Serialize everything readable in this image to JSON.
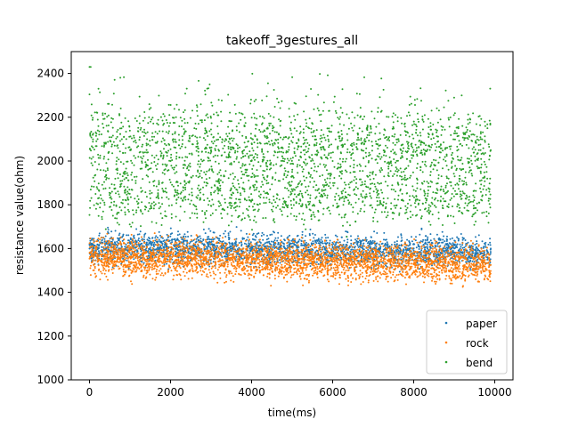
{
  "chart_data": {
    "type": "scatter",
    "title": "takeoff_3gestures_all",
    "xlabel": "time(ms)",
    "ylabel": "resistance value(ohm)",
    "xlim": [
      -450,
      10450
    ],
    "ylim": [
      1000,
      2500
    ],
    "xticks": [
      0,
      2000,
      4000,
      6000,
      8000,
      10000
    ],
    "yticks": [
      1000,
      1200,
      1400,
      1600,
      1800,
      2000,
      2200,
      2400
    ],
    "xtick_labels": [
      "0",
      "2000",
      "4000",
      "6000",
      "8000",
      "10000"
    ],
    "ytick_labels": [
      "1000",
      "1200",
      "1400",
      "1600",
      "1800",
      "2000",
      "2200",
      "2400"
    ],
    "legend_position": "lower-right",
    "grid": false,
    "series": [
      {
        "name": "paper",
        "color": "#1f77b4",
        "points": [
          [
            0,
            1600
          ],
          [
            200,
            1640
          ],
          [
            1000,
            1630
          ],
          [
            2000,
            1625
          ],
          [
            3000,
            1620
          ],
          [
            4000,
            1615
          ],
          [
            5000,
            1610
          ],
          [
            6000,
            1605
          ],
          [
            7000,
            1600
          ],
          [
            8000,
            1600
          ],
          [
            9000,
            1600
          ],
          [
            9900,
            1600
          ]
        ],
        "distribution": {
          "x_range": [
            0,
            9900
          ],
          "y_center_start": 1605,
          "y_center_end": 1585,
          "y_spread": 110,
          "count": 2600
        }
      },
      {
        "name": "rock",
        "color": "#ff7f0e",
        "points": [
          [
            0,
            1580
          ],
          [
            200,
            1540
          ],
          [
            1000,
            1560
          ],
          [
            2000,
            1550
          ],
          [
            3000,
            1550
          ],
          [
            4000,
            1545
          ],
          [
            5000,
            1540
          ],
          [
            6000,
            1540
          ],
          [
            7000,
            1535
          ],
          [
            8000,
            1530
          ],
          [
            9000,
            1530
          ],
          [
            9900,
            1525
          ]
        ],
        "distribution": {
          "x_range": [
            0,
            9900
          ],
          "y_center_start": 1560,
          "y_center_end": 1530,
          "y_spread": 130,
          "count": 3200
        }
      },
      {
        "name": "bend",
        "color": "#2ca02c",
        "points": [
          [
            0,
            2430
          ],
          [
            30,
            2430
          ],
          [
            200,
            2100
          ],
          [
            1000,
            2050
          ],
          [
            2000,
            2000
          ],
          [
            3000,
            2050
          ],
          [
            4000,
            2000
          ],
          [
            5000,
            1950
          ],
          [
            6000,
            2000
          ],
          [
            7000,
            1950
          ],
          [
            8000,
            2050
          ],
          [
            9900,
            2050
          ]
        ],
        "distribution": {
          "x_range": [
            0,
            9900
          ],
          "y_center_start": 2020,
          "y_center_end": 1990,
          "y_spread": 420,
          "count": 2800
        }
      }
    ]
  }
}
